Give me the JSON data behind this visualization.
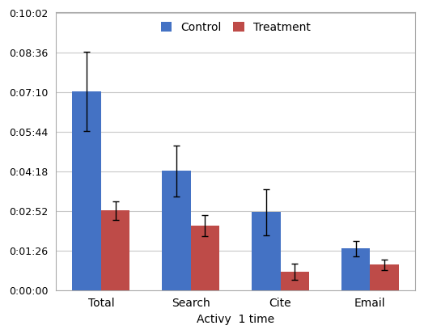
{
  "categories": [
    "Total",
    "Search",
    "Cite",
    "Email"
  ],
  "control_values": [
    432,
    259,
    169,
    90
  ],
  "treatment_values": [
    173,
    140,
    40,
    55
  ],
  "control_errors": [
    86,
    55,
    50,
    16
  ],
  "treatment_errors": [
    20,
    22,
    18,
    12
  ],
  "control_color": "#4472C4",
  "treatment_color": "#BE4B48",
  "xlabel": "Activy  1 time",
  "legend_labels": [
    "Control",
    "Treatment"
  ],
  "ylim_max": 605,
  "bar_width": 0.32,
  "background_color": "#FFFFFF",
  "grid_color": "#C8C8C8",
  "ytick_interval": 86,
  "border_color": "#AAAAAA"
}
